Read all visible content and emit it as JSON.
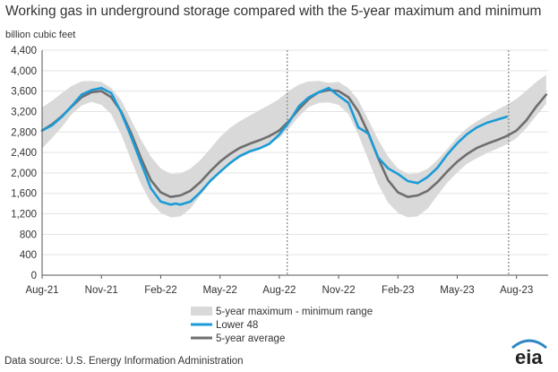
{
  "chart_data": {
    "type": "area",
    "title": "Working gas in underground  storage compared with the 5-year maximum and minimum",
    "ylabel": "billion cubic feet",
    "xlabel": "",
    "ylim": [
      0,
      4400
    ],
    "yticks": [
      0,
      400,
      800,
      1200,
      1600,
      2000,
      2400,
      2800,
      3200,
      3600,
      4000,
      4400
    ],
    "ytick_labels": [
      "0",
      "400",
      "800",
      "1,200",
      "1,600",
      "2,000",
      "2,400",
      "2,800",
      "3,200",
      "3,600",
      "4,000",
      "4,400"
    ],
    "xlim": [
      0,
      25.6
    ],
    "xticks": [
      {
        "x": 0,
        "label": "Aug-21"
      },
      {
        "x": 3,
        "label": "Nov-21"
      },
      {
        "x": 6,
        "label": "Feb-22"
      },
      {
        "x": 9,
        "label": "May-22"
      },
      {
        "x": 12,
        "label": "Aug-22"
      },
      {
        "x": 15,
        "label": "Nov-22"
      },
      {
        "x": 18,
        "label": "Feb-23"
      },
      {
        "x": 21,
        "label": "May-23"
      },
      {
        "x": 24,
        "label": "Aug-23"
      }
    ],
    "reference_lines_x": [
      12.4,
      23.6
    ],
    "legend": [
      "5-year maximum - minimum range",
      "Lower 48",
      "5-year average"
    ],
    "legend_position": "bottom-center",
    "range_x": [
      0,
      0.5,
      1,
      1.5,
      2,
      2.5,
      3,
      3.5,
      4,
      4.5,
      5,
      5.5,
      6,
      6.5,
      7,
      7.5,
      8,
      8.5,
      9,
      9.5,
      10,
      10.5,
      11,
      11.5,
      12,
      12.5,
      13,
      13.5,
      14,
      14.5,
      15,
      15.5,
      16,
      16.5,
      17,
      17.5,
      18,
      18.5,
      19,
      19.5,
      20,
      20.5,
      21,
      21.5,
      22,
      22.5,
      23,
      23.5,
      24,
      24.5,
      25,
      25.5
    ],
    "range_max": [
      3280,
      3410,
      3560,
      3700,
      3790,
      3800,
      3780,
      3660,
      3420,
      3040,
      2650,
      2320,
      2090,
      1980,
      1990,
      2080,
      2250,
      2470,
      2700,
      2880,
      3010,
      3120,
      3230,
      3330,
      3450,
      3610,
      3730,
      3790,
      3800,
      3760,
      3780,
      3660,
      3420,
      3040,
      2650,
      2320,
      2090,
      1980,
      1990,
      2080,
      2250,
      2470,
      2700,
      2880,
      3010,
      3120,
      3230,
      3330,
      3450,
      3610,
      3780,
      3920
    ],
    "range_min": [
      2480,
      2680,
      2900,
      3150,
      3320,
      3390,
      3330,
      3150,
      2750,
      2260,
      1780,
      1420,
      1220,
      1130,
      1150,
      1300,
      1560,
      1810,
      2010,
      2180,
      2290,
      2390,
      2470,
      2560,
      2680,
      2880,
      3110,
      3290,
      3370,
      3380,
      3330,
      3150,
      2750,
      2260,
      1780,
      1420,
      1220,
      1130,
      1150,
      1300,
      1560,
      1810,
      2010,
      2180,
      2290,
      2390,
      2470,
      2560,
      2680,
      2880,
      3120,
      3350
    ],
    "series": [
      {
        "name": "5-year average",
        "color": "#6e6e6e",
        "x": [
          0,
          0.5,
          1,
          1.5,
          2,
          2.5,
          3,
          3.5,
          4,
          4.5,
          5,
          5.5,
          6,
          6.5,
          7,
          7.5,
          8,
          8.5,
          9,
          9.5,
          10,
          10.5,
          11,
          11.5,
          12,
          12.5,
          13,
          13.5,
          14,
          14.5,
          15,
          15.5,
          16,
          16.5,
          17,
          17.5,
          18,
          18.5,
          19,
          19.5,
          20,
          20.5,
          21,
          21.5,
          22,
          22.5,
          23,
          23.5,
          24,
          24.5,
          25,
          25.5
        ],
        "values": [
          2830,
          2950,
          3110,
          3300,
          3480,
          3580,
          3600,
          3480,
          3200,
          2780,
          2290,
          1860,
          1620,
          1530,
          1560,
          1650,
          1820,
          2030,
          2220,
          2370,
          2490,
          2570,
          2640,
          2720,
          2830,
          3020,
          3250,
          3450,
          3580,
          3620,
          3600,
          3480,
          3200,
          2780,
          2290,
          1860,
          1620,
          1530,
          1560,
          1650,
          1820,
          2030,
          2220,
          2370,
          2490,
          2570,
          2640,
          2720,
          2830,
          3030,
          3300,
          3530
        ]
      },
      {
        "name": "Lower 48",
        "color": "#1a9bd7",
        "x": [
          0,
          0.5,
          1,
          1.5,
          2,
          2.5,
          3,
          3.5,
          4,
          4.5,
          5,
          5.5,
          6,
          6.5,
          6.75,
          7,
          7.5,
          8,
          8.5,
          9,
          9.5,
          10,
          10.5,
          11,
          11.5,
          12,
          12.5,
          13,
          13.5,
          14,
          14.5,
          15,
          15.5,
          16,
          16.5,
          17,
          17.5,
          18,
          18.5,
          19,
          19.5,
          20,
          20.5,
          21,
          21.5,
          22,
          22.5,
          23,
          23.5
        ],
        "values": [
          2830,
          2930,
          3100,
          3310,
          3530,
          3620,
          3660,
          3560,
          3180,
          2710,
          2200,
          1700,
          1440,
          1380,
          1400,
          1380,
          1440,
          1620,
          1840,
          2020,
          2190,
          2330,
          2420,
          2480,
          2570,
          2750,
          3000,
          3310,
          3480,
          3580,
          3660,
          3510,
          3370,
          2890,
          2770,
          2300,
          2090,
          1980,
          1840,
          1800,
          1920,
          2100,
          2360,
          2580,
          2760,
          2890,
          2980,
          3040,
          3100
        ]
      }
    ]
  },
  "source_text": "Data source:  U.S. Energy Information Administration",
  "logo": {
    "text": "eia",
    "color": "#2e86c1"
  }
}
